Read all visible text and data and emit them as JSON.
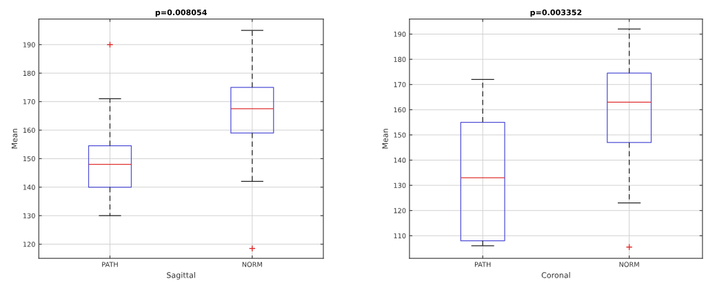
{
  "chart_data": [
    {
      "type": "box",
      "title": "p=0.008054",
      "xlabel": "Sagittal",
      "ylabel": "Mean",
      "categories": [
        "PATH",
        "NORM"
      ],
      "boxes": [
        {
          "low": 130,
          "q1": 140,
          "median": 148,
          "q3": 154.5,
          "high": 171,
          "outliers": [
            190
          ]
        },
        {
          "low": 142,
          "q1": 159,
          "median": 167.5,
          "q3": 175,
          "high": 195,
          "outliers": [
            118.5
          ]
        }
      ],
      "color": "#4f4fd8",
      "ylim": [
        115,
        199
      ],
      "yticks": [
        120,
        130,
        140,
        150,
        160,
        170,
        180,
        190
      ],
      "grid": true
    },
    {
      "type": "box",
      "title": "p=0.003352",
      "xlabel": "Coronal",
      "ylabel": "Mean",
      "categories": [
        "PATH",
        "NORM"
      ],
      "boxes": [
        {
          "low": 106,
          "q1": 108,
          "median": 133,
          "q3": 155,
          "high": 172
        },
        {
          "low": 123,
          "q1": 147,
          "median": 163,
          "q3": 174.5,
          "high": 192,
          "outliers": [
            105.5
          ]
        }
      ],
      "color": "#4f4fd8",
      "ylim": [
        101,
        196
      ],
      "yticks": [
        110,
        120,
        130,
        140,
        150,
        160,
        170,
        180,
        190
      ],
      "grid": true
    }
  ]
}
